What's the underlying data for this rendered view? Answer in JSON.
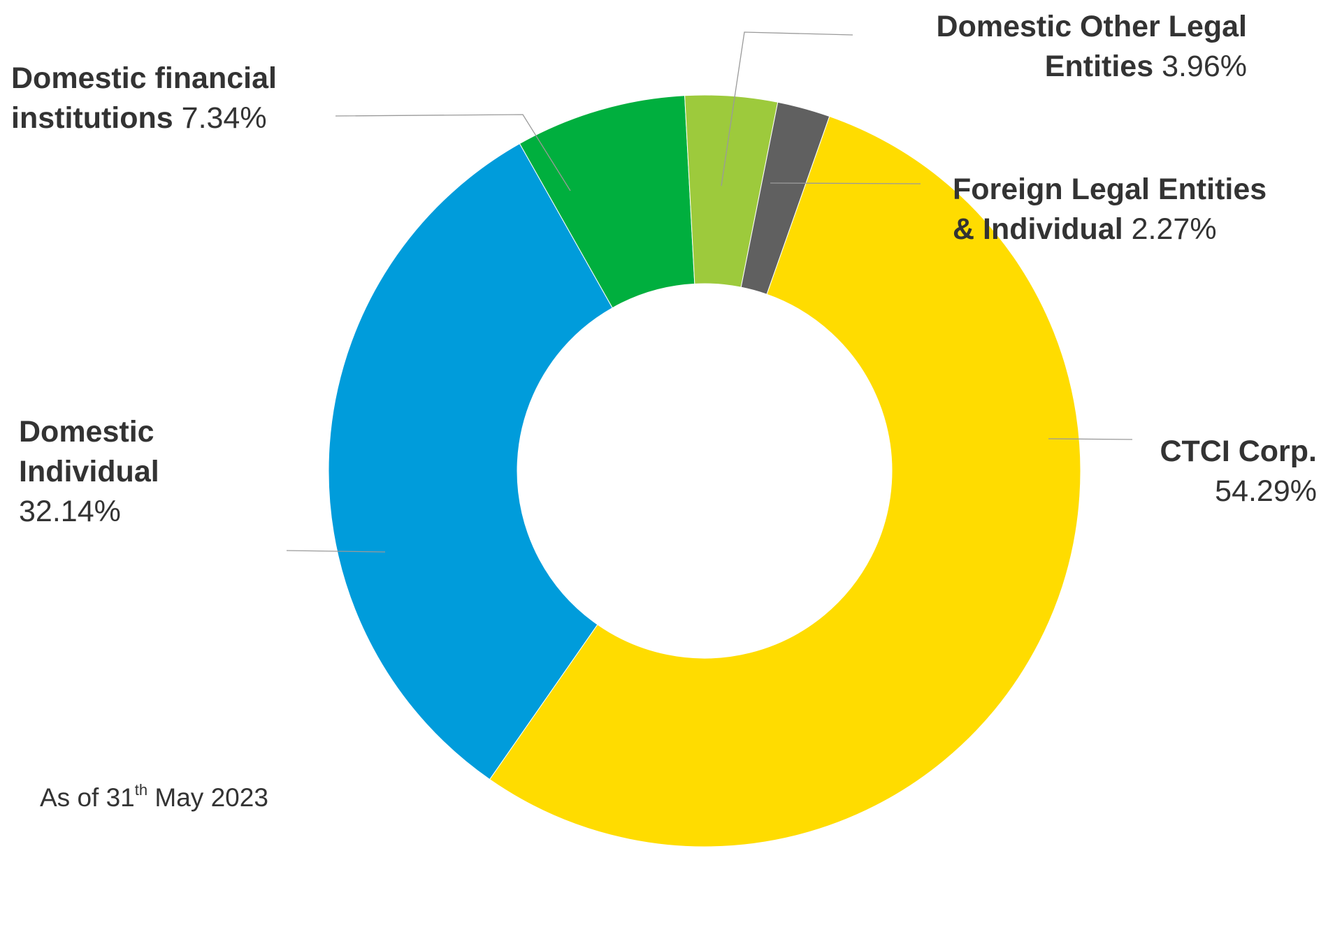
{
  "chart_data": {
    "type": "pie",
    "variant": "donut",
    "start_angle_deg": 19.4,
    "direction": "clockwise",
    "slices": [
      {
        "label": "CTCI Corp.",
        "value": 54.29,
        "display": "54.29%",
        "color": "#FFDC00"
      },
      {
        "label": "Domestic Individual",
        "value": 32.14,
        "display": "32.14%",
        "color": "#009CDB"
      },
      {
        "label": "Domestic financial institutions",
        "value": 7.34,
        "display": "7.34%",
        "color": "#00AF3E"
      },
      {
        "label": "Domestic Other Legal Entities",
        "value": 3.96,
        "display": "3.96%",
        "color": "#9DCA3C"
      },
      {
        "label": "Foreign Legal Entities & Individual",
        "value": 2.27,
        "display": "2.27%",
        "color": "#606060"
      }
    ],
    "label_lines": {
      "ctci": [
        "CTCI Corp."
      ],
      "individual": [
        "Domestic",
        "Individual"
      ],
      "financial": [
        "Domestic financial",
        "institutions"
      ],
      "other": [
        "Domestic Other Legal",
        "Entities"
      ],
      "foreign": [
        "Foreign Legal Entities",
        "& Individual"
      ]
    },
    "note": {
      "prefix": "As of 31",
      "sup": "th",
      "suffix": " May 2023"
    },
    "leader_color": "#9a9a9a"
  }
}
